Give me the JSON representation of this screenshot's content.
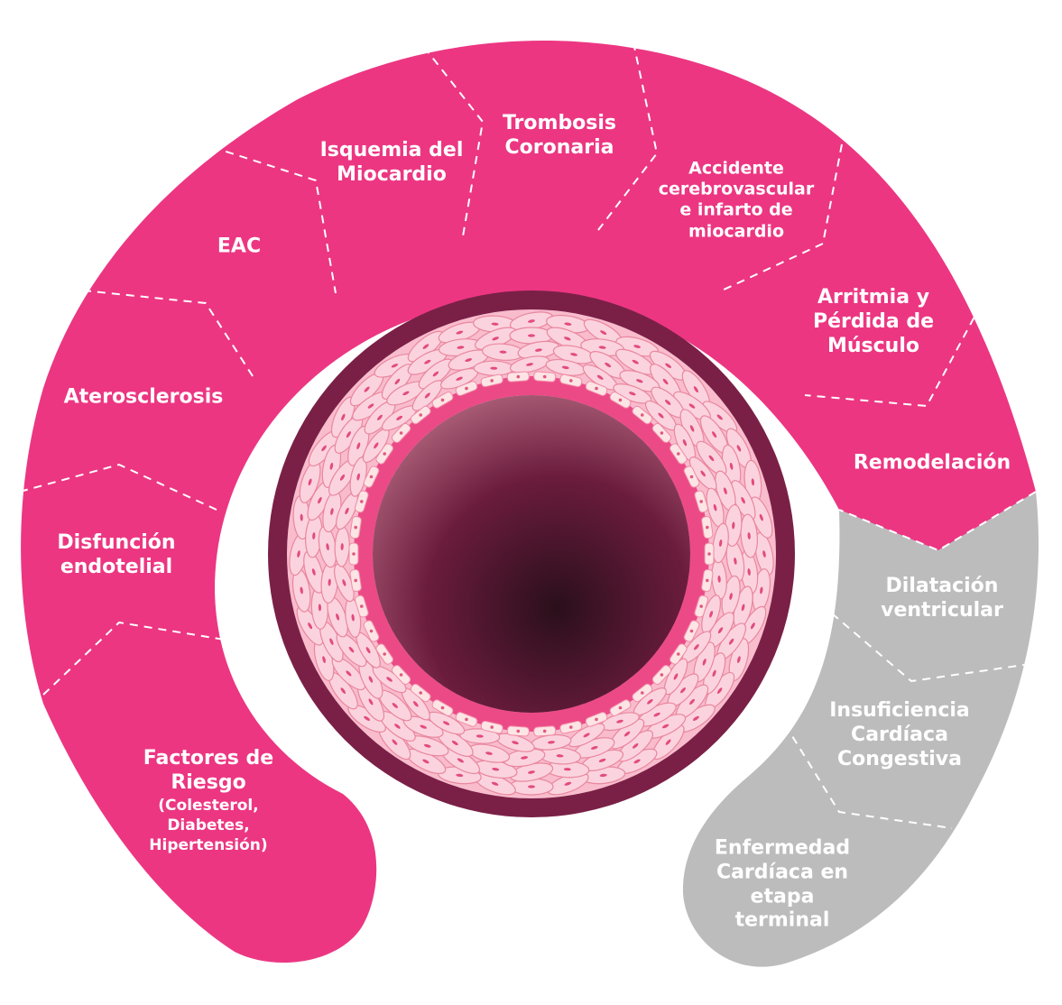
{
  "colors": {
    "pink": "#ec3682",
    "gray": "#bcbcbd",
    "outer_ring": "#7a2046",
    "vessel_wall": "#f8bccd",
    "cell": "#fbd3de",
    "intima_ring": "#ec4a87",
    "endothelium": "#fde4e5",
    "lumen_center": "#2a0f1b",
    "lumen_edge": "#b4687f"
  },
  "stages": [
    {
      "id": "factores",
      "lines": [
        "Factores de",
        "Riesgo"
      ],
      "sub": [
        "(Colesterol,",
        "Diabetes,",
        "Hipertensión)"
      ],
      "group": "pink"
    },
    {
      "id": "disfuncion",
      "lines": [
        "Disfunción",
        "endotelial"
      ],
      "group": "pink"
    },
    {
      "id": "aterosclerosis",
      "lines": [
        "Aterosclerosis"
      ],
      "group": "pink"
    },
    {
      "id": "eac",
      "lines": [
        "EAC"
      ],
      "group": "pink"
    },
    {
      "id": "isquemia",
      "lines": [
        "Isquemia del",
        "Miocardio"
      ],
      "group": "pink"
    },
    {
      "id": "trombosis",
      "lines": [
        "Trombosis",
        "Coronaria"
      ],
      "group": "pink"
    },
    {
      "id": "accidente",
      "lines": [
        "Accidente",
        "cerebrovascular",
        "e infarto de",
        "miocardio"
      ],
      "group": "pink"
    },
    {
      "id": "arritmia",
      "lines": [
        "Arritmia y",
        "Pérdida de",
        "Músculo"
      ],
      "group": "pink"
    },
    {
      "id": "remodelacion",
      "lines": [
        "Remodelación"
      ],
      "group": "pink"
    },
    {
      "id": "dilatacion",
      "lines": [
        "Dilatación",
        "ventricular"
      ],
      "group": "gray"
    },
    {
      "id": "insuficiencia",
      "lines": [
        "Insuficiencia",
        "Cardíaca",
        "Congestiva"
      ],
      "group": "gray"
    },
    {
      "id": "enfermedad",
      "lines": [
        "Enfermedad",
        "Cardíaca en",
        "etapa",
        "terminal"
      ],
      "group": "gray"
    }
  ]
}
